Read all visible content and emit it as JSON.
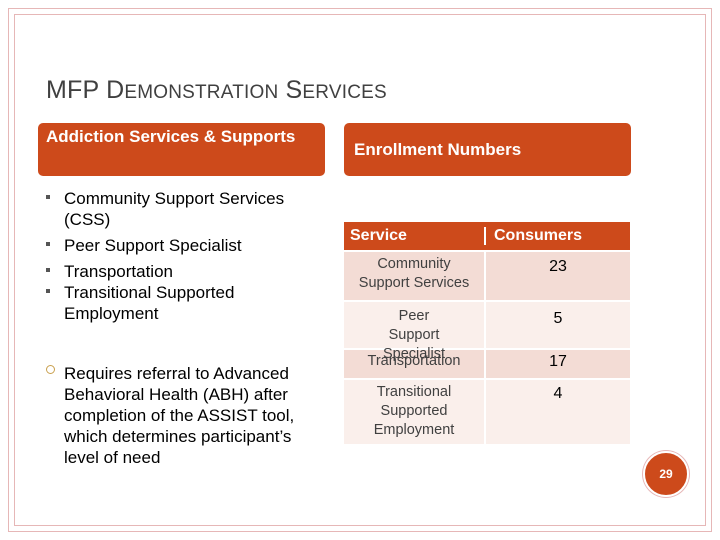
{
  "slide": {
    "title_parts": [
      {
        "text": "MFP D",
        "cls": "cap"
      },
      {
        "text": "EMONSTRATION",
        "cls": "sc"
      },
      {
        "text": " S",
        "cls": "cap"
      },
      {
        "text": "ERVICES",
        "cls": "sc"
      }
    ],
    "left_header": "Addiction Services & Supports",
    "right_header": "Enrollment Numbers",
    "services_list": [
      "Community Support Services (CSS)",
      "Peer Support Specialist",
      "Transportation",
      "Transitional Supported Employment"
    ],
    "note": "Requires referral to Advanced Behavioral Health (ABH) after completion of the ASSIST tool, which determines participant’s level of need",
    "table": {
      "headers": [
        "Service",
        "Consumers"
      ],
      "rows": [
        {
          "service": "Community Support Services",
          "consumers": "23"
        },
        {
          "service": "Peer Support Specialist",
          "consumers": "5"
        },
        {
          "service": "Transportation",
          "consumers": "17"
        },
        {
          "service": "Transitional Supported Employment",
          "consumers": "4"
        }
      ]
    },
    "page_number": "29",
    "colors": {
      "accent": "#cd4a1b",
      "row_dark": "#f3dcd5",
      "row_light": "#faefeb",
      "frame": "#e6b7b7"
    }
  }
}
